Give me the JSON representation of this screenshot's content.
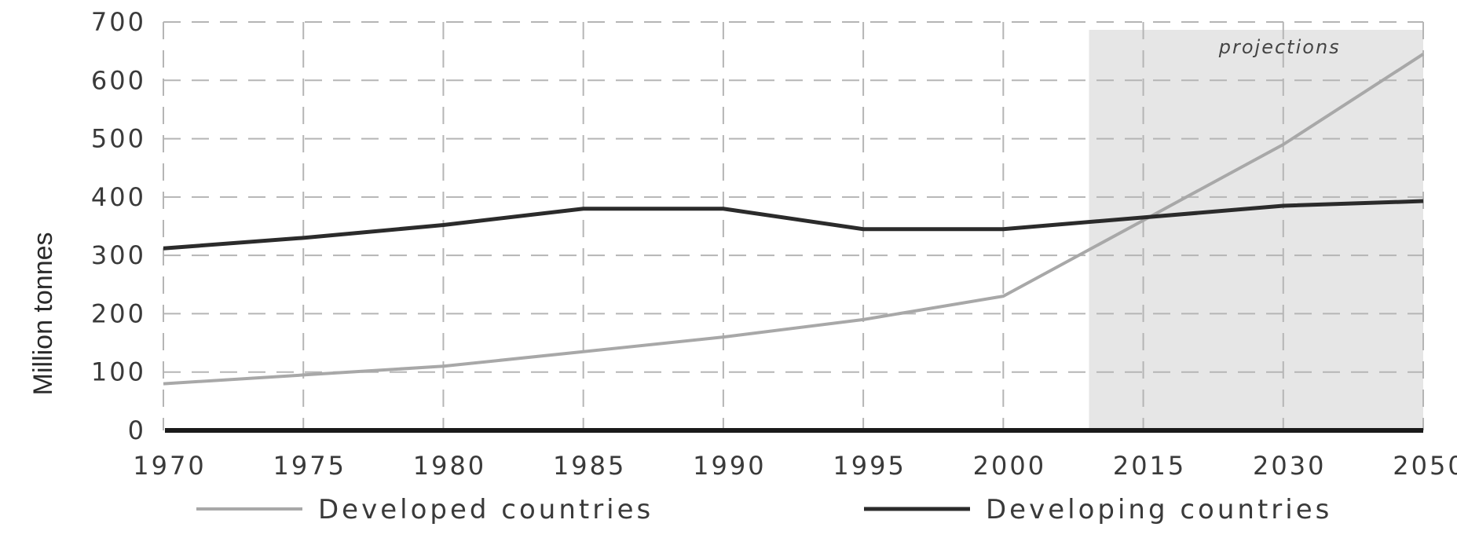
{
  "chart_data": {
    "type": "line",
    "ylabel": "Million tonnes",
    "xlabel": "",
    "categories": [
      "1970",
      "1975",
      "1980",
      "1985",
      "1990",
      "1995",
      "2000",
      "2015",
      "2030",
      "2050"
    ],
    "ylim": [
      0,
      700
    ],
    "yticks": [
      0,
      100,
      200,
      300,
      400,
      500,
      600,
      700
    ],
    "grid": true,
    "legend_position": "bottom",
    "series": [
      {
        "name": "Developed countries",
        "color": "#a8a8a8",
        "values": [
          80,
          95,
          110,
          135,
          160,
          190,
          230,
          360,
          490,
          645
        ]
      },
      {
        "name": "Developing countries",
        "color": "#2b2b2b",
        "values": [
          312,
          330,
          352,
          380,
          380,
          345,
          345,
          365,
          385,
          393
        ]
      }
    ],
    "shaded_region": {
      "label": "projections",
      "from_category": "2000",
      "to_category": "2050",
      "color": "#e6e6e6"
    }
  }
}
